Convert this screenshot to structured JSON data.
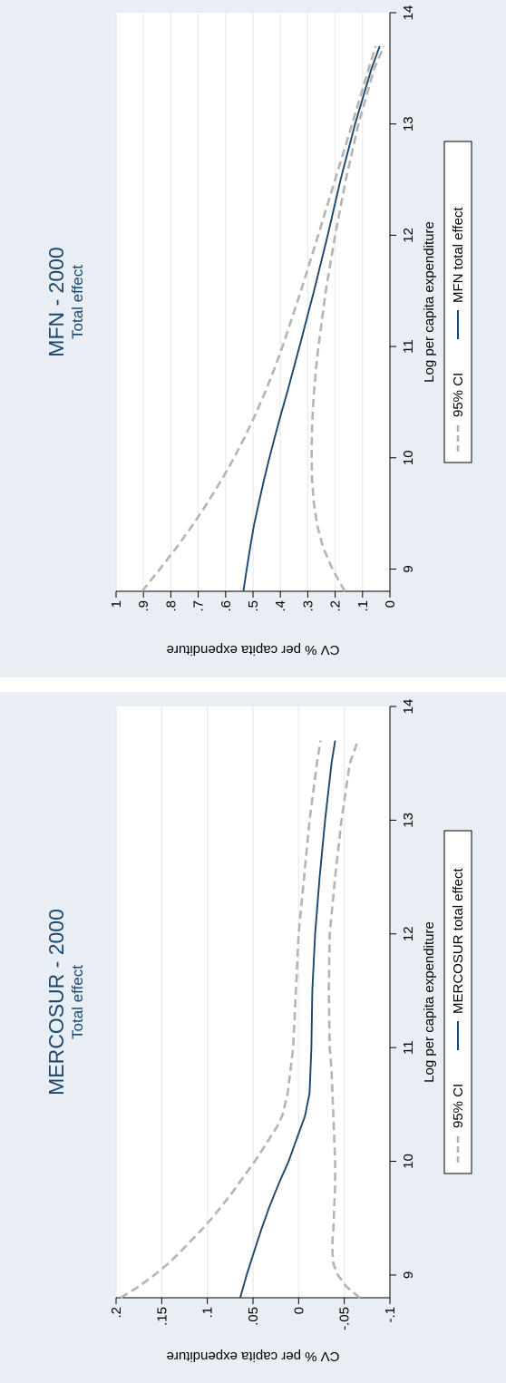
{
  "colors": {
    "panel_bg": "#e8eef4",
    "plot_bg": "#ffffff",
    "grid": "#e9eced",
    "title": "#1a476f",
    "estimate": "#1a476f",
    "ci": "#b4b4b4",
    "axis": "#000000"
  },
  "chart_data": [
    {
      "type": "line",
      "title": "MERCOSUR - 2000",
      "subtitle": "Total effect",
      "xlabel": "Log per capita expenditure",
      "ylabel": "CV % per capita expenditure",
      "xlim": [
        8.8,
        14
      ],
      "ylim": [
        -0.1,
        0.2
      ],
      "xticks": [
        "9",
        "10",
        "11",
        "12",
        "13",
        "14"
      ],
      "yticks": [
        "-.1",
        "-.05",
        "0",
        ".05",
        ".1",
        ".15",
        ".2"
      ],
      "grid": true,
      "legend_position": "bottom",
      "legend": [
        "95% CI",
        "MERCOSUR total effect"
      ],
      "series": [
        {
          "name": "95% CI",
          "style": "dashed",
          "x": [
            8.8,
            8.9,
            9.0,
            9.1,
            9.2,
            9.3,
            9.4,
            9.5,
            9.6,
            9.7,
            9.8,
            9.9,
            10.0,
            10.1,
            10.2,
            10.3,
            10.4,
            10.6,
            10.8,
            11.0,
            11.5,
            12.0,
            12.5,
            13.0,
            13.5,
            13.7
          ],
          "y": [
            0.195,
            0.175,
            0.158,
            0.143,
            0.13,
            0.118,
            0.106,
            0.095,
            0.085,
            0.075,
            0.066,
            0.057,
            0.048,
            0.04,
            0.032,
            0.024,
            0.018,
            0.012,
            0.009,
            0.006,
            0.003,
            0.0,
            -0.006,
            -0.012,
            -0.02,
            -0.024
          ]
        },
        {
          "name": "95% CI",
          "style": "dashed",
          "x": [
            8.8,
            8.9,
            9.0,
            9.1,
            9.2,
            9.3,
            9.4,
            9.6,
            9.8,
            10.0,
            10.2,
            10.4,
            10.6,
            10.8,
            11.0,
            11.5,
            12.0,
            12.5,
            13.0,
            13.5,
            13.7
          ],
          "y": [
            -0.067,
            -0.052,
            -0.043,
            -0.038,
            -0.037,
            -0.037,
            -0.038,
            -0.039,
            -0.04,
            -0.04,
            -0.039,
            -0.038,
            -0.037,
            -0.036,
            -0.034,
            -0.033,
            -0.034,
            -0.04,
            -0.047,
            -0.056,
            -0.065
          ]
        },
        {
          "name": "MERCOSUR total effect",
          "style": "solid",
          "x": [
            8.8,
            9.0,
            9.2,
            9.4,
            9.6,
            9.8,
            10.0,
            10.2,
            10.4,
            10.6,
            10.8,
            11.0,
            11.5,
            12.0,
            12.5,
            13.0,
            13.5,
            13.7
          ],
          "y": [
            0.064,
            0.057,
            0.049,
            0.041,
            0.032,
            0.022,
            0.011,
            0.002,
            -0.007,
            -0.012,
            -0.013,
            -0.014,
            -0.015,
            -0.018,
            -0.023,
            -0.029,
            -0.036,
            -0.04
          ]
        }
      ]
    },
    {
      "type": "line",
      "title": "MFN - 2000",
      "subtitle": "Total effect",
      "xlabel": "Log per capita expenditure",
      "ylabel": "CV % per capita expenditure",
      "xlim": [
        8.8,
        14
      ],
      "ylim": [
        0,
        1
      ],
      "xticks": [
        "9",
        "10",
        "11",
        "12",
        "13",
        "14"
      ],
      "yticks": [
        "0",
        ".1",
        ".2",
        ".3",
        ".4",
        ".5",
        ".6",
        ".7",
        ".8",
        ".9",
        "1"
      ],
      "grid": true,
      "legend_position": "bottom",
      "legend": [
        "95% CI",
        "MFN total effect"
      ],
      "series": [
        {
          "name": "95% CI",
          "style": "dashed",
          "x": [
            8.8,
            9.0,
            9.2,
            9.4,
            9.6,
            9.8,
            10.0,
            10.2,
            10.4,
            10.6,
            10.8,
            11.0,
            11.5,
            12.0,
            12.5,
            13.0,
            13.5,
            13.7
          ],
          "y": [
            0.905,
            0.84,
            0.777,
            0.719,
            0.665,
            0.615,
            0.569,
            0.527,
            0.489,
            0.454,
            0.422,
            0.392,
            0.325,
            0.262,
            0.2,
            0.138,
            0.077,
            0.052
          ]
        },
        {
          "name": "95% CI",
          "style": "dashed",
          "x": [
            8.8,
            9.0,
            9.2,
            9.4,
            9.6,
            9.8,
            10.0,
            10.2,
            10.4,
            10.6,
            10.8,
            11.0,
            11.5,
            12.0,
            12.5,
            13.0,
            13.5,
            13.7
          ],
          "y": [
            0.165,
            0.21,
            0.245,
            0.266,
            0.278,
            0.284,
            0.286,
            0.285,
            0.282,
            0.277,
            0.27,
            0.261,
            0.234,
            0.2,
            0.161,
            0.115,
            0.057,
            0.022
          ]
        },
        {
          "name": "MFN total effect",
          "style": "solid",
          "x": [
            8.8,
            9.0,
            9.2,
            9.4,
            9.6,
            9.8,
            10.0,
            10.2,
            10.4,
            10.6,
            10.8,
            11.0,
            11.5,
            12.0,
            12.5,
            13.0,
            13.5,
            13.7
          ],
          "y": [
            0.535,
            0.523,
            0.51,
            0.496,
            0.478,
            0.46,
            0.44,
            0.419,
            0.397,
            0.374,
            0.352,
            0.33,
            0.277,
            0.227,
            0.18,
            0.127,
            0.067,
            0.037
          ]
        }
      ]
    }
  ]
}
